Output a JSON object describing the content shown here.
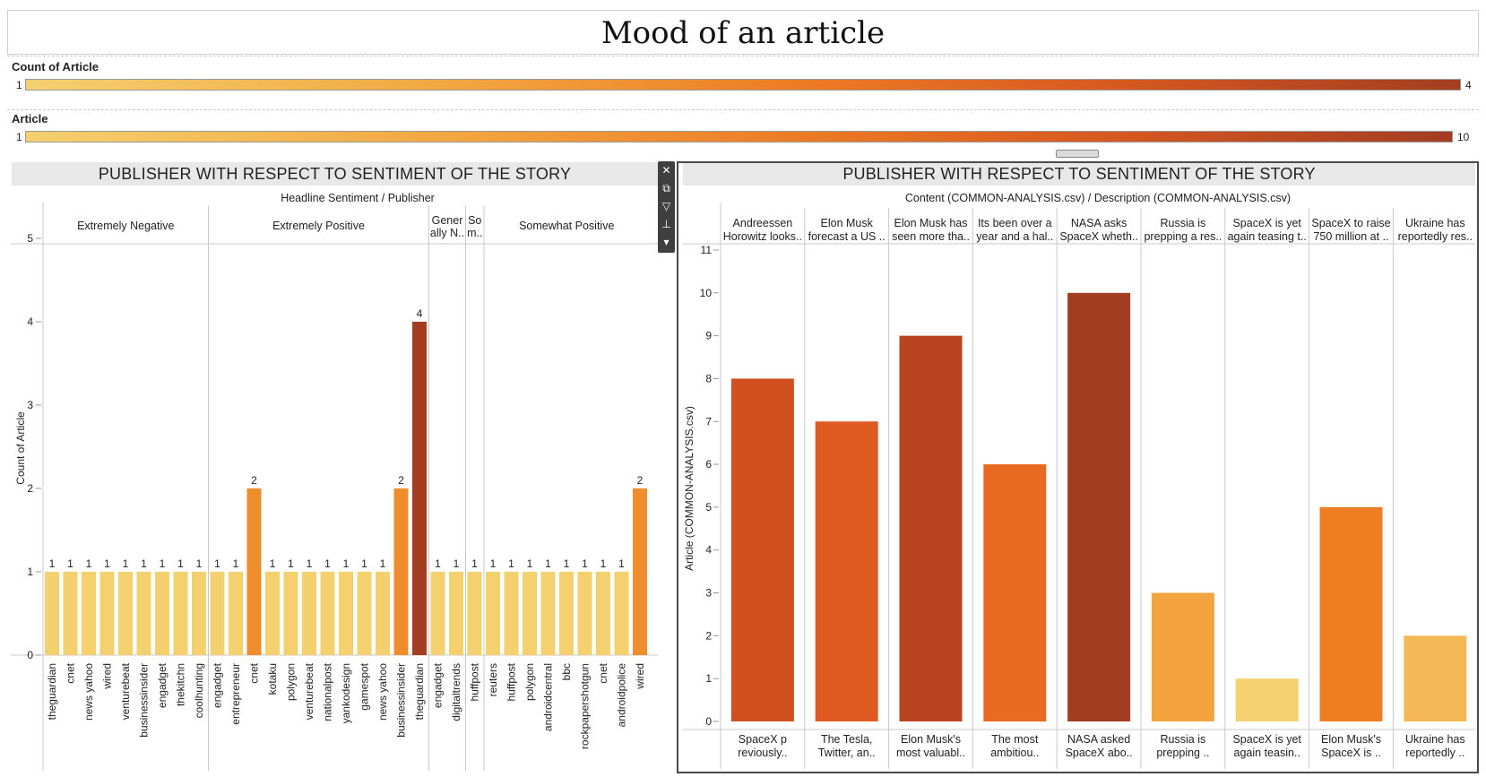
{
  "title": "Mood of an article",
  "legends": [
    {
      "label": "Count of Article",
      "min": "1",
      "max": "4"
    },
    {
      "label": "Article",
      "min": "1",
      "max": "10"
    }
  ],
  "chart_data": [
    {
      "type": "bar",
      "title": "PUBLISHER WITH RESPECT TO SENTIMENT OF THE STORY",
      "header": "Headline Sentiment  /  Publisher",
      "ylabel": "Count of Article",
      "ylim": [
        0,
        5
      ],
      "yticks": [
        0,
        1,
        2,
        3,
        4,
        5
      ],
      "groups": [
        {
          "label": "Extremely Negative",
          "label_lines": [
            "Extremely Negative"
          ],
          "publishers": [
            "theguardian",
            "cnet",
            "news yahoo",
            "wired",
            "venturebeat",
            "businessinsider",
            "engadget",
            "thekitchn",
            "coolhunting"
          ],
          "values": [
            1,
            1,
            1,
            1,
            1,
            1,
            1,
            1,
            1
          ]
        },
        {
          "label": "Extremely Positive",
          "label_lines": [
            "Extremely Positive"
          ],
          "publishers": [
            "engadget",
            "entrepreneur",
            "cnet",
            "kotaku",
            "polygon",
            "venturebeat",
            "nationalpost",
            "yankodesign",
            "gamespot",
            "news yahoo",
            "businessinsider",
            "theguardian"
          ],
          "values": [
            1,
            1,
            2,
            1,
            1,
            1,
            1,
            1,
            1,
            1,
            2,
            4
          ]
        },
        {
          "label": "Generally N..",
          "label_lines": [
            "Gener",
            "ally N.."
          ],
          "publishers": [
            "engadget",
            "digitaltrends"
          ],
          "values": [
            1,
            1
          ]
        },
        {
          "label": "Somewhat N..",
          "label_lines": [
            "So",
            "m.."
          ],
          "publishers": [
            "huffpost"
          ],
          "values": [
            1
          ]
        },
        {
          "label": "Somewhat Positive",
          "label_lines": [
            "Somewhat Positive"
          ],
          "publishers": [
            "reuters",
            "huffpost",
            "polygon",
            "androidcentral",
            "bbc",
            "rockpapershotgun",
            "cnet",
            "androidpolice",
            "wired"
          ],
          "values": [
            1,
            1,
            1,
            1,
            1,
            1,
            1,
            1,
            2
          ]
        }
      ]
    },
    {
      "type": "bar",
      "title": "PUBLISHER WITH RESPECT TO SENTIMENT OF THE STORY",
      "header": "Content (COMMON-ANALYSIS.csv)  /  Description (COMMON-ANALYSIS.csv)",
      "ylabel": "Article (COMMON-ANALYSIS.csv)",
      "ylim": [
        0,
        11
      ],
      "yticks": [
        0,
        1,
        2,
        3,
        4,
        5,
        6,
        7,
        8,
        9,
        10,
        11
      ],
      "columns": [
        {
          "top": [
            "Andreessen",
            "Horowitz looks.."
          ],
          "bottom": [
            "SpaceX p",
            "reviously.."
          ],
          "value": 8
        },
        {
          "top": [
            "Elon Musk",
            "forecast a US .."
          ],
          "bottom": [
            "The Tesla,",
            "Twitter, an.."
          ],
          "value": 7
        },
        {
          "top": [
            "Elon Musk has",
            "seen more tha.."
          ],
          "bottom": [
            "Elon Musk's",
            "most valuabl.."
          ],
          "value": 9
        },
        {
          "top": [
            "Its been over a",
            "year and a hal.."
          ],
          "bottom": [
            "The most",
            "ambitiou.."
          ],
          "value": 6
        },
        {
          "top": [
            "NASA asks",
            "SpaceX wheth.."
          ],
          "bottom": [
            "NASA asked",
            "SpaceX abo.."
          ],
          "value": 10
        },
        {
          "top": [
            "Russia is",
            "prepping a res.."
          ],
          "bottom": [
            "Russia is",
            "prepping .."
          ],
          "value": 3
        },
        {
          "top": [
            "SpaceX is yet",
            "again teasing t.."
          ],
          "bottom": [
            "SpaceX is yet",
            "again teasin.."
          ],
          "value": 1
        },
        {
          "top": [
            "SpaceX to raise",
            "750 million at .."
          ],
          "bottom": [
            "Elon Musk's",
            "SpaceX is .."
          ],
          "value": 5
        },
        {
          "top": [
            "Ukraine has",
            "reportedly res.."
          ],
          "bottom": [
            "Ukraine has",
            "reportedly .."
          ],
          "value": 2
        }
      ]
    }
  ],
  "colors": {
    "c1": "#f4d06e",
    "c2": "#ef8c2c",
    "c4": "#a33d22",
    "a1": "#f4d06e",
    "a2": "#f5b857",
    "a3": "#f4a43f",
    "a5": "#ef7d22",
    "a6": "#e8691f",
    "a7": "#df5a20",
    "a8": "#d2501f",
    "a9": "#b8441f",
    "a10": "#a33d22"
  },
  "toolbar_icons": [
    "close-icon",
    "popout-icon",
    "filter-icon",
    "pin-icon",
    "more-icon"
  ]
}
